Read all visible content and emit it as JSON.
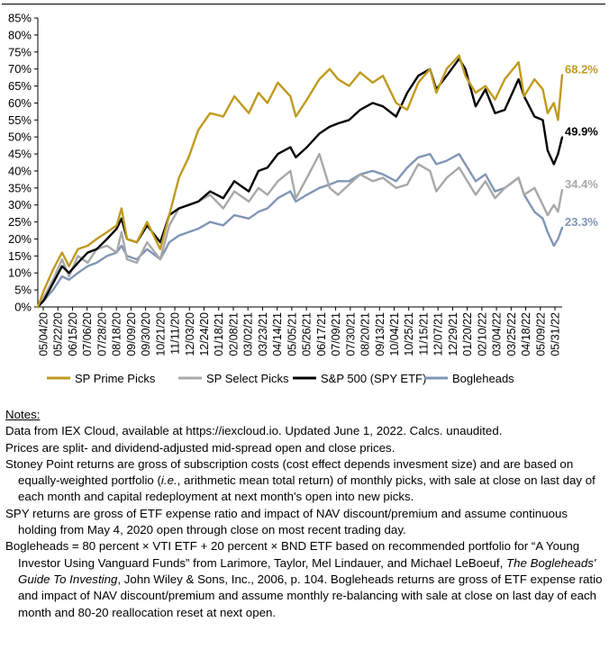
{
  "chart_data": {
    "type": "line",
    "ylim": [
      0,
      85
    ],
    "yticks": [
      0,
      5,
      10,
      15,
      20,
      25,
      30,
      35,
      40,
      45,
      50,
      55,
      60,
      65,
      70,
      75,
      80,
      85
    ],
    "ytick_labels": [
      "0%",
      "5%",
      "10%",
      "15%",
      "20%",
      "25%",
      "30%",
      "35%",
      "40%",
      "45%",
      "50%",
      "55%",
      "60%",
      "65%",
      "70%",
      "75%",
      "80%",
      "85%"
    ],
    "x_start": "2020-05-04",
    "x_end": "2022-06-01",
    "xtick_labels": [
      "05/04/20",
      "05/22/20",
      "06/15/20",
      "07/06/20",
      "07/28/20",
      "08/18/20",
      "09/09/20",
      "09/30/20",
      "10/21/20",
      "11/11/20",
      "12/03/20",
      "12/24/20",
      "01/18/21",
      "02/08/21",
      "03/02/21",
      "03/23/21",
      "04/14/21",
      "05/05/21",
      "05/26/21",
      "06/17/21",
      "07/09/21",
      "07/30/21",
      "08/20/21",
      "09/13/21",
      "10/04/21",
      "10/25/21",
      "11/15/21",
      "12/07/21",
      "12/29/21",
      "01/20/22",
      "02/10/22",
      "03/04/22",
      "03/25/22",
      "04/18/22",
      "05/09/22",
      "05/31/22"
    ],
    "legend_position": "bottom",
    "grid": false,
    "series": [
      {
        "name": "SP Prime Picks",
        "color": "#C09A1E",
        "end_label": "68.2%",
        "points": [
          [
            "2020-05-04",
            0
          ],
          [
            "2020-05-13",
            5
          ],
          [
            "2020-05-26",
            11
          ],
          [
            "2020-06-08",
            16
          ],
          [
            "2020-06-18",
            12
          ],
          [
            "2020-07-01",
            17
          ],
          [
            "2020-07-15",
            18
          ],
          [
            "2020-07-28",
            20
          ],
          [
            "2020-08-12",
            22
          ],
          [
            "2020-08-26",
            24
          ],
          [
            "2020-09-02",
            29
          ],
          [
            "2020-09-10",
            20
          ],
          [
            "2020-09-24",
            19
          ],
          [
            "2020-10-09",
            25
          ],
          [
            "2020-10-28",
            17
          ],
          [
            "2020-11-10",
            27
          ],
          [
            "2020-11-24",
            38
          ],
          [
            "2020-12-08",
            44
          ],
          [
            "2020-12-22",
            52
          ],
          [
            "2021-01-08",
            57
          ],
          [
            "2021-01-27",
            56
          ],
          [
            "2021-02-12",
            62
          ],
          [
            "2021-03-05",
            57
          ],
          [
            "2021-03-19",
            63
          ],
          [
            "2021-04-01",
            60
          ],
          [
            "2021-04-16",
            66
          ],
          [
            "2021-05-04",
            62
          ],
          [
            "2021-05-12",
            56
          ],
          [
            "2021-05-28",
            61
          ],
          [
            "2021-06-15",
            67
          ],
          [
            "2021-06-30",
            70
          ],
          [
            "2021-07-12",
            67
          ],
          [
            "2021-07-28",
            65
          ],
          [
            "2021-08-13",
            69
          ],
          [
            "2021-08-31",
            66
          ],
          [
            "2021-09-15",
            68
          ],
          [
            "2021-10-04",
            60
          ],
          [
            "2021-10-20",
            58
          ],
          [
            "2021-11-05",
            66
          ],
          [
            "2021-11-22",
            70
          ],
          [
            "2021-12-01",
            63
          ],
          [
            "2021-12-16",
            70
          ],
          [
            "2022-01-03",
            74
          ],
          [
            "2022-01-12",
            68
          ],
          [
            "2022-01-27",
            63
          ],
          [
            "2022-02-10",
            65
          ],
          [
            "2022-02-24",
            61
          ],
          [
            "2022-03-10",
            67
          ],
          [
            "2022-03-30",
            72
          ],
          [
            "2022-04-07",
            62
          ],
          [
            "2022-04-22",
            67
          ],
          [
            "2022-05-04",
            64
          ],
          [
            "2022-05-11",
            57
          ],
          [
            "2022-05-20",
            60
          ],
          [
            "2022-05-26",
            55
          ],
          [
            "2022-06-01",
            68.2
          ]
        ]
      },
      {
        "name": "SP Select Picks",
        "color": "#A8A8A8",
        "end_label": "34.4%",
        "points": [
          [
            "2020-05-04",
            0
          ],
          [
            "2020-05-13",
            3
          ],
          [
            "2020-05-26",
            8
          ],
          [
            "2020-06-08",
            14
          ],
          [
            "2020-06-18",
            9
          ],
          [
            "2020-07-01",
            15
          ],
          [
            "2020-07-15",
            13
          ],
          [
            "2020-07-28",
            17
          ],
          [
            "2020-08-12",
            18
          ],
          [
            "2020-08-26",
            16
          ],
          [
            "2020-09-02",
            22
          ],
          [
            "2020-09-10",
            14
          ],
          [
            "2020-09-24",
            13
          ],
          [
            "2020-10-09",
            19
          ],
          [
            "2020-10-28",
            14
          ],
          [
            "2020-11-10",
            24
          ],
          [
            "2020-11-24",
            29
          ],
          [
            "2020-12-08",
            30
          ],
          [
            "2020-12-22",
            31
          ],
          [
            "2021-01-08",
            33
          ],
          [
            "2021-01-27",
            29
          ],
          [
            "2021-02-12",
            34
          ],
          [
            "2021-03-05",
            31
          ],
          [
            "2021-03-19",
            35
          ],
          [
            "2021-04-01",
            33
          ],
          [
            "2021-04-16",
            37
          ],
          [
            "2021-05-04",
            40
          ],
          [
            "2021-05-12",
            32
          ],
          [
            "2021-05-28",
            38
          ],
          [
            "2021-06-15",
            45
          ],
          [
            "2021-06-30",
            35
          ],
          [
            "2021-07-12",
            33
          ],
          [
            "2021-07-28",
            36
          ],
          [
            "2021-08-13",
            39
          ],
          [
            "2021-08-31",
            37
          ],
          [
            "2021-09-15",
            38
          ],
          [
            "2021-10-04",
            35
          ],
          [
            "2021-10-20",
            36
          ],
          [
            "2021-11-05",
            42
          ],
          [
            "2021-11-22",
            40
          ],
          [
            "2021-12-01",
            34
          ],
          [
            "2021-12-16",
            38
          ],
          [
            "2022-01-03",
            41
          ],
          [
            "2022-01-12",
            38
          ],
          [
            "2022-01-27",
            33
          ],
          [
            "2022-02-10",
            37
          ],
          [
            "2022-02-24",
            32
          ],
          [
            "2022-03-10",
            35
          ],
          [
            "2022-03-30",
            38
          ],
          [
            "2022-04-07",
            33
          ],
          [
            "2022-04-22",
            35
          ],
          [
            "2022-05-04",
            30
          ],
          [
            "2022-05-11",
            27
          ],
          [
            "2022-05-20",
            30
          ],
          [
            "2022-05-26",
            28
          ],
          [
            "2022-06-01",
            34.4
          ]
        ]
      },
      {
        "name": "S&P 500 (SPY ETF)",
        "color": "#000000",
        "end_label": "49.9%",
        "points": [
          [
            "2020-05-04",
            0
          ],
          [
            "2020-05-13",
            2
          ],
          [
            "2020-05-26",
            7
          ],
          [
            "2020-06-08",
            12
          ],
          [
            "2020-06-18",
            10
          ],
          [
            "2020-07-01",
            13
          ],
          [
            "2020-07-15",
            16
          ],
          [
            "2020-07-28",
            17
          ],
          [
            "2020-08-12",
            20
          ],
          [
            "2020-08-26",
            23
          ],
          [
            "2020-09-02",
            26
          ],
          [
            "2020-09-10",
            20
          ],
          [
            "2020-09-24",
            19
          ],
          [
            "2020-10-09",
            24
          ],
          [
            "2020-10-28",
            19
          ],
          [
            "2020-11-10",
            27
          ],
          [
            "2020-11-24",
            29
          ],
          [
            "2020-12-08",
            30
          ],
          [
            "2020-12-22",
            31
          ],
          [
            "2021-01-08",
            34
          ],
          [
            "2021-01-27",
            32
          ],
          [
            "2021-02-12",
            37
          ],
          [
            "2021-03-05",
            34
          ],
          [
            "2021-03-19",
            40
          ],
          [
            "2021-04-01",
            41
          ],
          [
            "2021-04-16",
            45
          ],
          [
            "2021-05-04",
            47
          ],
          [
            "2021-05-12",
            44
          ],
          [
            "2021-05-28",
            47
          ],
          [
            "2021-06-15",
            51
          ],
          [
            "2021-06-30",
            53
          ],
          [
            "2021-07-12",
            54
          ],
          [
            "2021-07-28",
            55
          ],
          [
            "2021-08-13",
            58
          ],
          [
            "2021-08-31",
            60
          ],
          [
            "2021-09-15",
            59
          ],
          [
            "2021-10-04",
            56
          ],
          [
            "2021-10-20",
            63
          ],
          [
            "2021-11-05",
            68
          ],
          [
            "2021-11-22",
            70
          ],
          [
            "2021-12-01",
            64
          ],
          [
            "2021-12-16",
            68
          ],
          [
            "2022-01-03",
            73
          ],
          [
            "2022-01-12",
            70
          ],
          [
            "2022-01-27",
            59
          ],
          [
            "2022-02-10",
            64
          ],
          [
            "2022-02-24",
            57
          ],
          [
            "2022-03-10",
            58
          ],
          [
            "2022-03-30",
            67
          ],
          [
            "2022-04-07",
            62
          ],
          [
            "2022-04-22",
            56
          ],
          [
            "2022-05-04",
            55
          ],
          [
            "2022-05-11",
            46
          ],
          [
            "2022-05-20",
            42
          ],
          [
            "2022-05-26",
            45
          ],
          [
            "2022-06-01",
            49.9
          ]
        ]
      },
      {
        "name": "Bogleheads",
        "color": "#8095B5",
        "end_label": "23.3%",
        "points": [
          [
            "2020-05-04",
            0
          ],
          [
            "2020-05-13",
            2
          ],
          [
            "2020-05-26",
            5
          ],
          [
            "2020-06-08",
            9
          ],
          [
            "2020-06-18",
            8
          ],
          [
            "2020-07-01",
            10
          ],
          [
            "2020-07-15",
            12
          ],
          [
            "2020-07-28",
            13
          ],
          [
            "2020-08-12",
            15
          ],
          [
            "2020-08-26",
            16
          ],
          [
            "2020-09-02",
            18
          ],
          [
            "2020-09-10",
            15
          ],
          [
            "2020-09-24",
            14
          ],
          [
            "2020-10-09",
            17
          ],
          [
            "2020-10-28",
            14
          ],
          [
            "2020-11-10",
            19
          ],
          [
            "2020-11-24",
            21
          ],
          [
            "2020-12-08",
            22
          ],
          [
            "2020-12-22",
            23
          ],
          [
            "2021-01-08",
            25
          ],
          [
            "2021-01-27",
            24
          ],
          [
            "2021-02-12",
            27
          ],
          [
            "2021-03-05",
            26
          ],
          [
            "2021-03-19",
            28
          ],
          [
            "2021-04-01",
            29
          ],
          [
            "2021-04-16",
            32
          ],
          [
            "2021-05-04",
            34
          ],
          [
            "2021-05-12",
            31
          ],
          [
            "2021-05-28",
            33
          ],
          [
            "2021-06-15",
            35
          ],
          [
            "2021-06-30",
            36
          ],
          [
            "2021-07-12",
            37
          ],
          [
            "2021-07-28",
            37
          ],
          [
            "2021-08-13",
            39
          ],
          [
            "2021-08-31",
            40
          ],
          [
            "2021-09-15",
            39
          ],
          [
            "2021-10-04",
            37
          ],
          [
            "2021-10-20",
            41
          ],
          [
            "2021-11-05",
            44
          ],
          [
            "2021-11-22",
            45
          ],
          [
            "2021-12-01",
            42
          ],
          [
            "2021-12-16",
            43
          ],
          [
            "2022-01-03",
            45
          ],
          [
            "2022-01-12",
            42
          ],
          [
            "2022-01-27",
            37
          ],
          [
            "2022-02-10",
            39
          ],
          [
            "2022-02-24",
            34
          ],
          [
            "2022-03-10",
            35
          ],
          [
            "2022-03-30",
            38
          ],
          [
            "2022-04-07",
            33
          ],
          [
            "2022-04-22",
            28
          ],
          [
            "2022-05-04",
            26
          ],
          [
            "2022-05-11",
            22
          ],
          [
            "2022-05-20",
            18
          ],
          [
            "2022-05-26",
            20
          ],
          [
            "2022-06-01",
            23.3
          ]
        ]
      }
    ]
  },
  "notes": {
    "title": "Notes:",
    "line1": "Data from IEX Cloud, available at https://iexcloud.io. Updated June 1, 2022. Calcs. unaudited.",
    "line2": "Prices are split- and dividend-adjusted mid-spread open and close prices.",
    "p3_a": "Stoney Point returns are gross of subscription costs (cost effect depends invesment size) and are based on equally-weighted portfolio (",
    "p3_ie": "i.e.",
    "p3_b": ", arithmetic mean total return) of monthly picks, with sale at close on last day of each month and capital redeployment at next month's open into new picks.",
    "p4": "SPY returns are gross of ETF expense ratio and impact of NAV discount/premium and assume continuous holding from May 4, 2020 open through close on most recent trading day.",
    "p5_a": "Bogleheads = 80 percent × VTI ETF + 20 percent × BND ETF based on recommended portfolio for “A Young Investor Using Vanguard Funds” from Larimore, Taylor, Mel Lindauer, and Michael LeBoeuf, ",
    "p5_book": "The Bogleheads' Guide To Investing",
    "p5_b": ", John Wiley & Sons, Inc., 2006, p. 104. Bogleheads returns are gross of ETF expense ratio and impact of NAV discount/premium and assume monthly re-balancing with sale at close on last day of each month and 80-20 reallocation reset at next open."
  }
}
